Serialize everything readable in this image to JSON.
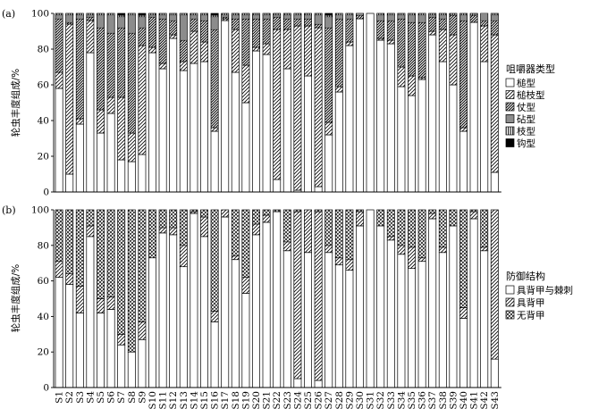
{
  "chart_data": [
    {
      "type": "bar",
      "stacked": true,
      "panel_label": "(a)",
      "ylabel": "轮虫丰度组成/%",
      "ylim": [
        0,
        100
      ],
      "yticks": [
        0,
        20,
        40,
        60,
        80,
        100
      ],
      "categories": [
        "S1",
        "S2",
        "S3",
        "S4",
        "S5",
        "S6",
        "S7",
        "S8",
        "S9",
        "S10",
        "S11",
        "S12",
        "S13",
        "S14",
        "S15",
        "S16",
        "S17",
        "S18",
        "S19",
        "S20",
        "S21",
        "S22",
        "S23",
        "S24",
        "S25",
        "S26",
        "S27",
        "S28",
        "S29",
        "S30",
        "S31",
        "S32",
        "S33",
        "S34",
        "S35",
        "S36",
        "S37",
        "S38",
        "S39",
        "S40",
        "S41",
        "S42",
        "S43"
      ],
      "legend": {
        "title": "咀嚼器类型",
        "placement": "right",
        "entries": [
          "槌型",
          "槌枝型",
          "仗型",
          "砧型",
          "枝型",
          "钩型"
        ]
      },
      "series": [
        {
          "name": "槌型",
          "values": [
            58,
            10,
            38,
            78,
            33,
            44,
            18,
            17,
            21,
            78,
            69,
            86,
            68,
            72,
            73,
            34,
            96,
            67,
            50,
            79,
            77,
            7,
            69,
            1,
            65,
            3,
            32,
            56,
            82,
            97,
            100,
            85,
            83,
            59,
            54,
            63,
            88,
            73,
            60,
            34,
            95,
            73,
            11
          ]
        },
        {
          "name": "槌枝型",
          "values": [
            9,
            84,
            3,
            18,
            13,
            9,
            35,
            16,
            61,
            3,
            3,
            2,
            5,
            18,
            11,
            2,
            1,
            24,
            21,
            2,
            6,
            84,
            22,
            92,
            28,
            89,
            7,
            3,
            2,
            0,
            0,
            1,
            2,
            11,
            11,
            1,
            2,
            18,
            28,
            2,
            0,
            20,
            77
          ]
        },
        {
          "name": "仗型",
          "values": [
            30,
            1,
            56,
            2,
            46,
            36,
            39,
            56,
            10,
            17,
            25,
            8,
            12,
            7,
            12,
            55,
            1,
            6,
            26,
            16,
            14,
            7,
            6,
            4,
            4,
            2,
            53,
            38,
            13,
            2,
            0,
            10,
            11,
            27,
            30,
            31,
            8,
            6,
            11,
            60,
            4,
            3,
            8
          ]
        },
        {
          "name": "砧型",
          "values": [
            2,
            4,
            2,
            1,
            7,
            10,
            6,
            10,
            6,
            1,
            2,
            3,
            14,
            2,
            3,
            7,
            1,
            2,
            2,
            2,
            2,
            1,
            2,
            2,
            2,
            5,
            6,
            2,
            2,
            1,
            0,
            3,
            3,
            2,
            4,
            4,
            1,
            2,
            0,
            3,
            0,
            4,
            3
          ]
        },
        {
          "name": "枝型",
          "values": [
            1,
            1,
            1,
            1,
            1,
            1,
            1,
            1,
            1,
            1,
            1,
            1,
            1,
            1,
            1,
            1,
            1,
            1,
            1,
            1,
            1,
            1,
            1,
            1,
            1,
            1,
            1,
            1,
            1,
            0,
            0,
            1,
            1,
            1,
            1,
            1,
            1,
            1,
            1,
            1,
            1,
            0,
            1
          ]
        },
        {
          "name": "钩型",
          "values": [
            0,
            0,
            0,
            0,
            0,
            0,
            1,
            0,
            1,
            0,
            0,
            0,
            0,
            0,
            0,
            1,
            0,
            0,
            0,
            0,
            0,
            0,
            0,
            0,
            0,
            0,
            1,
            0,
            0,
            0,
            0,
            0,
            0,
            0,
            0,
            0,
            0,
            0,
            0,
            0,
            0,
            0,
            0
          ]
        }
      ]
    },
    {
      "type": "bar",
      "stacked": true,
      "panel_label": "(b)",
      "ylabel": "轮虫丰度组成/%",
      "ylim": [
        0,
        100
      ],
      "yticks": [
        0,
        20,
        40,
        60,
        80,
        100
      ],
      "categories": [
        "S1",
        "S2",
        "S3",
        "S4",
        "S5",
        "S6",
        "S7",
        "S8",
        "S9",
        "S10",
        "S11",
        "S12",
        "S13",
        "S14",
        "S15",
        "S16",
        "S17",
        "S18",
        "S19",
        "S20",
        "S21",
        "S22",
        "S23",
        "S24",
        "S25",
        "S26",
        "S27",
        "S28",
        "S29",
        "S30",
        "S31",
        "S32",
        "S33",
        "S34",
        "S35",
        "S36",
        "S37",
        "S38",
        "S39",
        "S40",
        "S41",
        "S42",
        "S43"
      ],
      "legend": {
        "title": "防御结构",
        "placement": "right",
        "entries": [
          "具背甲与棘刺",
          "具背甲",
          "无背甲"
        ]
      },
      "series": [
        {
          "name": "具背甲与棘刺",
          "values": [
            62,
            58,
            42,
            85,
            42,
            44,
            24,
            20,
            27,
            73,
            87,
            86,
            68,
            98,
            85,
            37,
            96,
            72,
            53,
            86,
            93,
            99,
            77,
            5,
            76,
            4,
            76,
            69,
            66,
            91,
            100,
            91,
            83,
            75,
            67,
            71,
            95,
            76,
            91,
            39,
            95,
            77,
            16
          ]
        },
        {
          "name": "具背甲",
          "values": [
            9,
            6,
            15,
            6,
            8,
            7,
            6,
            0,
            10,
            0,
            3,
            4,
            12,
            1,
            11,
            6,
            4,
            2,
            9,
            6,
            4,
            0,
            5,
            94,
            24,
            95,
            4,
            4,
            6,
            8,
            0,
            0,
            2,
            5,
            12,
            2,
            3,
            3,
            0,
            6,
            4,
            2,
            84
          ]
        },
        {
          "name": "无背甲",
          "values": [
            29,
            36,
            43,
            9,
            50,
            49,
            70,
            80,
            63,
            27,
            10,
            10,
            20,
            1,
            4,
            57,
            0,
            26,
            38,
            8,
            3,
            1,
            18,
            1,
            0,
            1,
            20,
            27,
            28,
            1,
            0,
            9,
            15,
            20,
            21,
            27,
            2,
            21,
            9,
            55,
            1,
            21,
            0
          ]
        }
      ]
    }
  ]
}
